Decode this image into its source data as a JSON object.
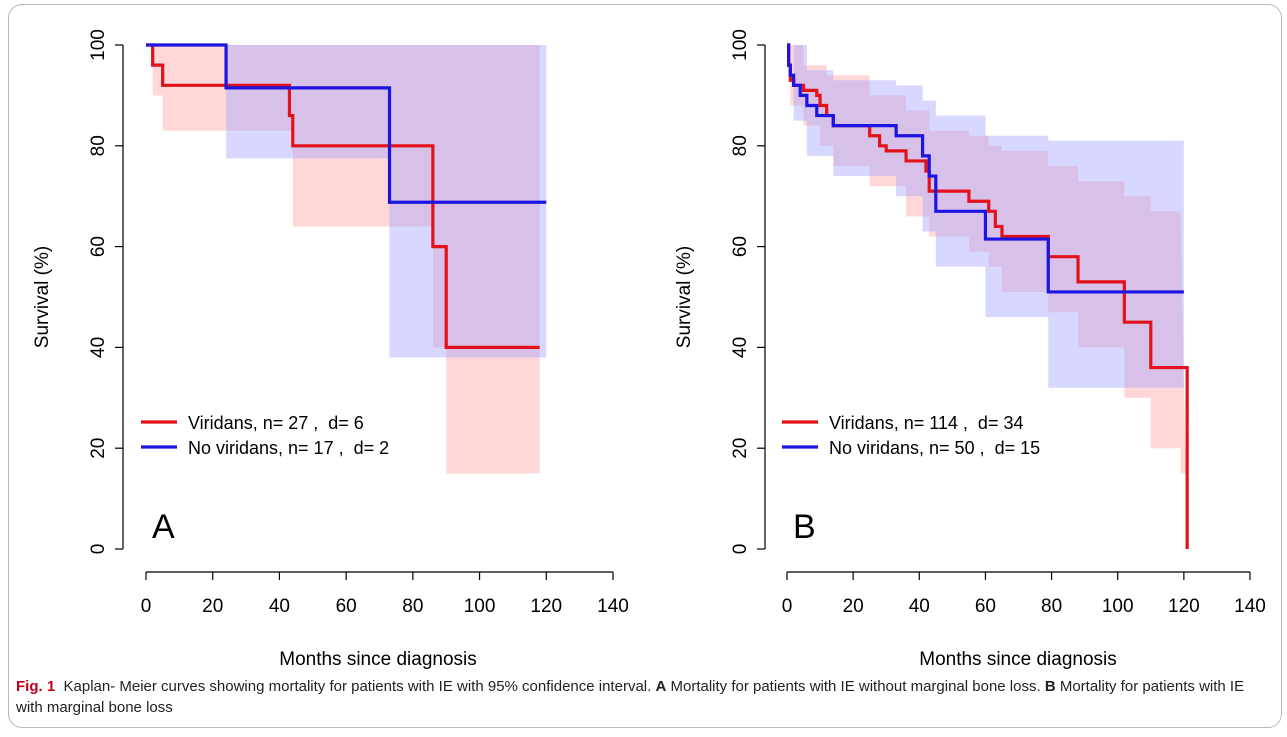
{
  "caption": {
    "fig_label": "Fig. 1",
    "text_1": "Kaplan- Meier curves showing mortality for patients with IE with 95% confidence interval.",
    "a_label": "A",
    "text_a": "Mortality for patients with IE without marginal bone loss.",
    "b_label": "B",
    "text_b": "Mortality for patients with IE with marginal bone loss"
  },
  "colors": {
    "viridans": "#e3121a",
    "no_viridans": "#1c14e0",
    "viridans_ci": "#ff9fa2",
    "no_viridans_ci": "#a9a6ff"
  },
  "chart_data": [
    {
      "type": "line",
      "panel_label": "A",
      "xlabel": "Months since diagnosis",
      "ylabel": "Survival (%)",
      "xlim": [
        0,
        140
      ],
      "ylim": [
        0,
        100
      ],
      "xticks": [
        0,
        20,
        40,
        60,
        80,
        100,
        120,
        140
      ],
      "yticks": [
        0,
        20,
        40,
        60,
        80,
        100
      ],
      "grid": false,
      "legend_position": "bottom-left",
      "series": [
        {
          "name": "Viridans, n= 27 ,  d= 6",
          "color_key": "viridans",
          "steps": [
            [
              0,
              100
            ],
            [
              2,
              96
            ],
            [
              5,
              92
            ],
            [
              43,
              86
            ],
            [
              44,
              80
            ],
            [
              86,
              60
            ],
            [
              90,
              40
            ],
            [
              118,
              40
            ]
          ],
          "ci_upper": [
            [
              0,
              100
            ],
            [
              118,
              100
            ]
          ],
          "ci_lower": [
            [
              0,
              100
            ],
            [
              2,
              90
            ],
            [
              5,
              83
            ],
            [
              44,
              64
            ],
            [
              86,
              40
            ],
            [
              90,
              15
            ],
            [
              118,
              15
            ]
          ]
        },
        {
          "name": "No viridans, n= 17 ,  d= 2",
          "color_key": "no_viridans",
          "steps": [
            [
              0,
              100
            ],
            [
              24,
              91.5
            ],
            [
              73,
              68.8
            ],
            [
              120,
              68.8
            ]
          ],
          "ci_upper": [
            [
              0,
              100
            ],
            [
              120,
              100
            ]
          ],
          "ci_lower": [
            [
              0,
              100
            ],
            [
              16,
              100
            ],
            [
              24,
              77.5
            ],
            [
              73,
              38
            ],
            [
              120,
              38
            ]
          ]
        }
      ]
    },
    {
      "type": "line",
      "panel_label": "B",
      "xlabel": "Months since diagnosis",
      "ylabel": "Survival (%)",
      "xlim": [
        0,
        140
      ],
      "ylim": [
        0,
        100
      ],
      "xticks": [
        0,
        20,
        40,
        60,
        80,
        100,
        120,
        140
      ],
      "yticks": [
        0,
        20,
        40,
        60,
        80,
        100
      ],
      "grid": false,
      "legend_position": "bottom-left",
      "series": [
        {
          "name": "Viridans, n= 114 ,  d= 34",
          "color_key": "viridans",
          "steps": [
            [
              0,
              100
            ],
            [
              0.5,
              96
            ],
            [
              1,
              93
            ],
            [
              2,
              92
            ],
            [
              5,
              91
            ],
            [
              9,
              90
            ],
            [
              10,
              88
            ],
            [
              12,
              86
            ],
            [
              14,
              84
            ],
            [
              25,
              82
            ],
            [
              28,
              80
            ],
            [
              30,
              79
            ],
            [
              36,
              77
            ],
            [
              42,
              75
            ],
            [
              43,
              71
            ],
            [
              55,
              69
            ],
            [
              61,
              67
            ],
            [
              63,
              64
            ],
            [
              65,
              62
            ],
            [
              79,
              58
            ],
            [
              88,
              53
            ],
            [
              102,
              45
            ],
            [
              110,
              36
            ],
            [
              121,
              0
            ]
          ],
          "ci_upper": [
            [
              0,
              100
            ],
            [
              5,
              96
            ],
            [
              12,
              94
            ],
            [
              25,
              90
            ],
            [
              36,
              87
            ],
            [
              43,
              83
            ],
            [
              55,
              82
            ],
            [
              61,
              80
            ],
            [
              65,
              79
            ],
            [
              79,
              76
            ],
            [
              88,
              73
            ],
            [
              102,
              70
            ],
            [
              110,
              67
            ],
            [
              119,
              67
            ]
          ],
          "ci_lower": [
            [
              0,
              100
            ],
            [
              1,
              88
            ],
            [
              5,
              84
            ],
            [
              10,
              80
            ],
            [
              14,
              76
            ],
            [
              25,
              72
            ],
            [
              36,
              66
            ],
            [
              43,
              62
            ],
            [
              55,
              59
            ],
            [
              61,
              56
            ],
            [
              65,
              51
            ],
            [
              79,
              47
            ],
            [
              88,
              40
            ],
            [
              102,
              30
            ],
            [
              110,
              20
            ],
            [
              119,
              15
            ],
            [
              121,
              0
            ]
          ]
        },
        {
          "name": "No viridans, n= 50 ,  d= 15",
          "color_key": "no_viridans",
          "steps": [
            [
              0,
              100
            ],
            [
              0.5,
              96
            ],
            [
              1,
              94
            ],
            [
              2,
              92
            ],
            [
              4,
              90
            ],
            [
              6,
              88
            ],
            [
              9,
              86
            ],
            [
              14,
              84
            ],
            [
              33,
              82
            ],
            [
              41,
              78
            ],
            [
              43,
              74
            ],
            [
              45,
              67
            ],
            [
              60,
              61.5
            ],
            [
              79,
              51
            ],
            [
              120,
              51
            ]
          ],
          "ci_upper": [
            [
              0,
              100
            ],
            [
              6,
              95
            ],
            [
              14,
              93
            ],
            [
              33,
              92
            ],
            [
              41,
              89
            ],
            [
              45,
              86
            ],
            [
              60,
              82
            ],
            [
              79,
              81
            ],
            [
              120,
              81
            ]
          ],
          "ci_lower": [
            [
              0,
              100
            ],
            [
              2,
              85
            ],
            [
              6,
              78
            ],
            [
              14,
              74
            ],
            [
              33,
              70
            ],
            [
              41,
              63
            ],
            [
              45,
              56
            ],
            [
              60,
              46
            ],
            [
              79,
              32
            ],
            [
              120,
              32
            ]
          ]
        }
      ]
    }
  ]
}
